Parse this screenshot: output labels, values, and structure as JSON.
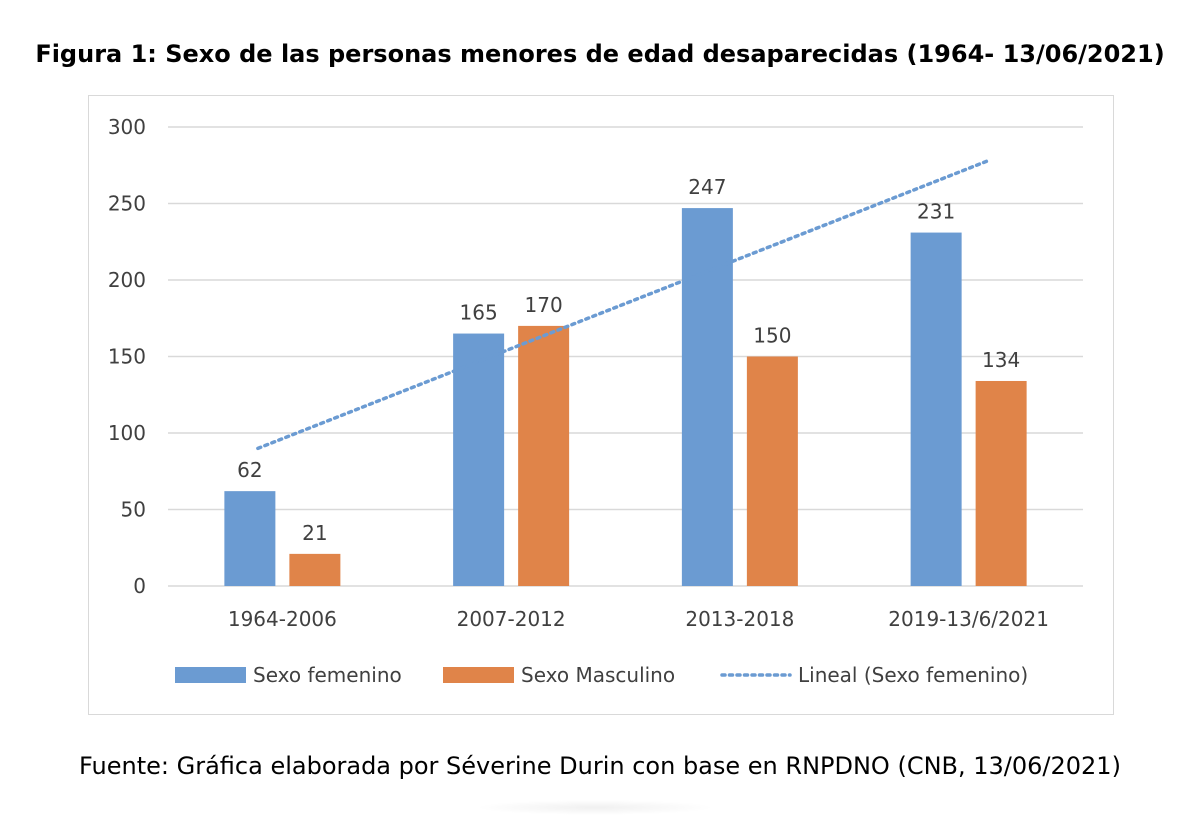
{
  "figure_title": "Figura 1: Sexo de las personas menores de edad desaparecidas (1964- 13/06/2021)",
  "source_text": "Fuente: Gráfica elaborada por Séverine Durin con base en RNPDNO (CNB, 13/06/2021)",
  "chart_data": {
    "type": "bar",
    "title": "",
    "xlabel": "",
    "ylabel": "",
    "categories": [
      "1964-2006",
      "2007-2012",
      "2013-2018",
      "2019-13/6/2021"
    ],
    "series": [
      {
        "name": "Sexo femenino",
        "values": [
          62,
          165,
          247,
          231
        ],
        "color": "#6b9bd2"
      },
      {
        "name": "Sexo Masculino",
        "values": [
          21,
          170,
          150,
          134
        ],
        "color": "#e08449"
      }
    ],
    "trendline": {
      "name": "Lineal (Sexo femenino)",
      "of_series": "Sexo femenino",
      "type": "linear",
      "style": "dotted",
      "color": "#6b9bd2"
    },
    "ylim": [
      0,
      300
    ],
    "yticks": [
      0,
      50,
      100,
      150,
      200,
      250,
      300
    ],
    "grid": true,
    "legend_position": "bottom",
    "data_labels": true
  }
}
